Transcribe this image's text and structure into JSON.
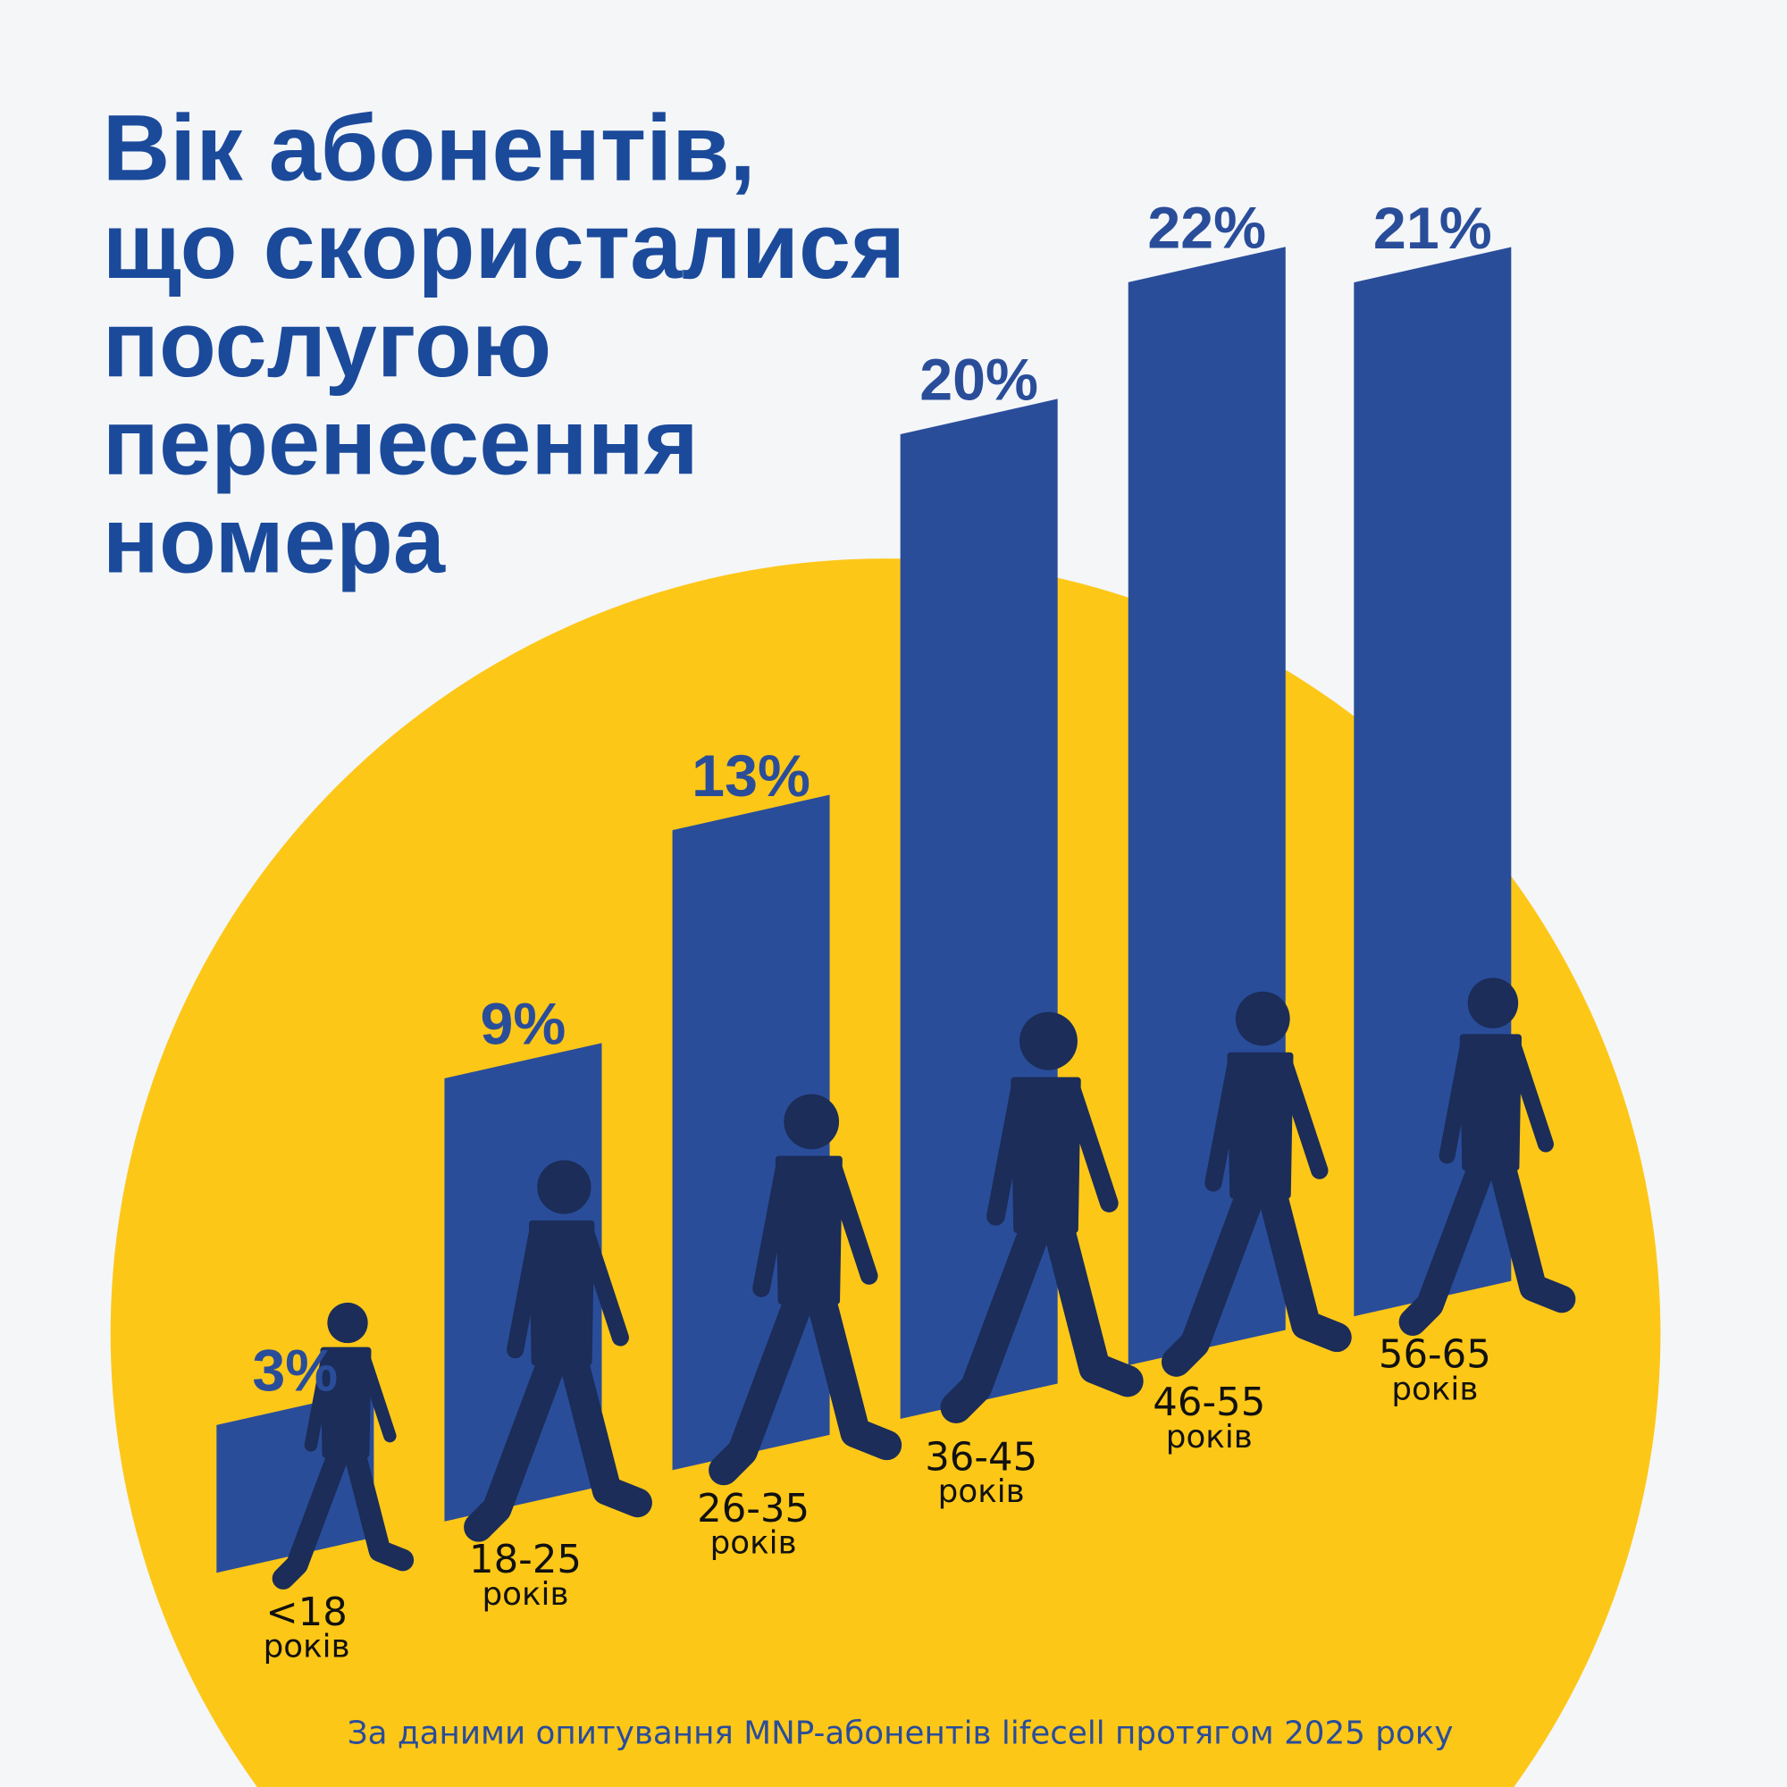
{
  "title_lines": [
    "Вік абонентів,",
    "що скористалися",
    "послугою",
    "перенесення",
    "номера"
  ],
  "footer": "За даними опитування MNP-абонентів lifecell протягом 2025 року",
  "colors": {
    "background": "#f4f6f8",
    "title": "#1b4a9b",
    "bar": "#2a4d9a",
    "circle": "#fdc718",
    "silhouette": "#1b2d58"
  },
  "chart_data": {
    "type": "bar",
    "categories": [
      "<18",
      "18-25",
      "26-35",
      "36-45",
      "46-55",
      "56-65"
    ],
    "category_unit": "років",
    "values": [
      3,
      9,
      13,
      20,
      22,
      21
    ],
    "value_labels": [
      "3%",
      "9%",
      "13%",
      "20%",
      "22%",
      "21%"
    ],
    "unit": "%"
  }
}
